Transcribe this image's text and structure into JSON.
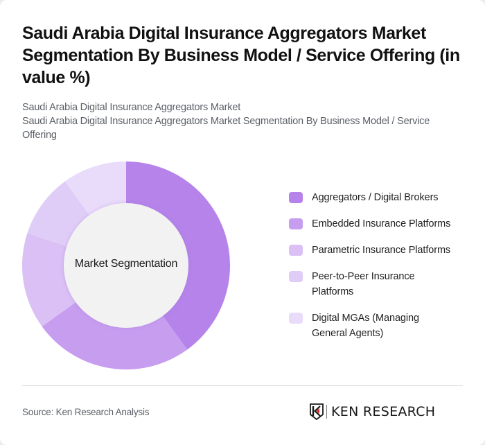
{
  "header": {
    "title": "Saudi Arabia Digital Insurance Aggregators Market Segmentation By Business Model / Service Offering (in value %)",
    "subtitle_line1": "Saudi Arabia Digital Insurance Aggregators Market",
    "subtitle_line2": "Saudi Arabia Digital Insurance Aggregators Market Segmentation By Business Model / Service Offering"
  },
  "chart": {
    "center_label": "Market Segmentation"
  },
  "legend": {
    "items": [
      {
        "label": "Aggregators / Digital Brokers",
        "color": "#b583e9"
      },
      {
        "label": "Embedded Insurance Platforms",
        "color": "#c69def"
      },
      {
        "label": "Parametric Insurance Platforms",
        "color": "#dac0f5"
      },
      {
        "label": "Peer-to-Peer Insurance Platforms",
        "color": "#e0cdf7"
      },
      {
        "label": "Digital MGAs (Managing General Agents)",
        "color": "#e9dbfa"
      }
    ]
  },
  "footer": {
    "source": "Source: Ken Research Analysis",
    "logo_text": "KEN RESEARCH"
  },
  "chart_data": {
    "type": "pie",
    "title": "Saudi Arabia Digital Insurance Aggregators Market Segmentation By Business Model / Service Offering (in value %)",
    "subtitle": "Saudi Arabia Digital Insurance Aggregators Market",
    "donut": true,
    "center_label": "Market Segmentation",
    "categories": [
      "Aggregators / Digital Brokers",
      "Embedded Insurance Platforms",
      "Parametric Insurance Platforms",
      "Peer-to-Peer Insurance Platforms",
      "Digital MGAs (Managing General Agents)"
    ],
    "values": [
      40,
      25,
      15,
      10,
      10
    ],
    "colors": [
      "#b583e9",
      "#c69def",
      "#dac0f5",
      "#e0cdf7",
      "#e9dbfa"
    ],
    "unit": "%",
    "legend_position": "right",
    "source": "Source: Ken Research Analysis"
  }
}
